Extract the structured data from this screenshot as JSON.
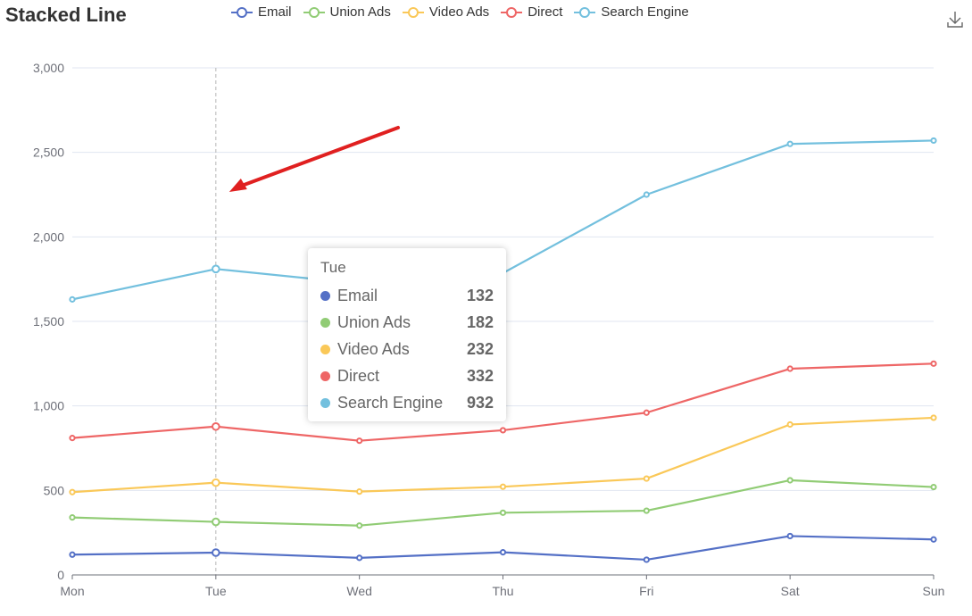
{
  "title": "Stacked Line",
  "toolbox": {
    "icon": "download-icon"
  },
  "tooltip": {
    "title": "Tue",
    "rows": [
      {
        "name": "Email",
        "value": "132",
        "color": "#5470c6"
      },
      {
        "name": "Union Ads",
        "value": "182",
        "color": "#91cc75"
      },
      {
        "name": "Video Ads",
        "value": "232",
        "color": "#fac858"
      },
      {
        "name": "Direct",
        "value": "332",
        "color": "#ee6666"
      },
      {
        "name": "Search Engine",
        "value": "932",
        "color": "#73c0de"
      }
    ]
  },
  "chart_data": {
    "type": "line",
    "title": "Stacked Line",
    "categories": [
      "Mon",
      "Tue",
      "Wed",
      "Thu",
      "Fri",
      "Sat",
      "Sun"
    ],
    "y_ticks": [
      "0",
      "500",
      "1,000",
      "1,500",
      "2,000",
      "2,500",
      "3,000"
    ],
    "ylim": [
      0,
      3000
    ],
    "grid": true,
    "legend_position": "top",
    "highlighted_category": "Tue",
    "series": [
      {
        "name": "Email",
        "color": "#5470c6",
        "values": [
          120,
          132,
          101,
          134,
          90,
          230,
          210
        ]
      },
      {
        "name": "Union Ads",
        "color": "#91cc75",
        "values": [
          340,
          314,
          292,
          368,
          380,
          560,
          520
        ]
      },
      {
        "name": "Video Ads",
        "color": "#fac858",
        "values": [
          490,
          546,
          493,
          522,
          570,
          890,
          930
        ]
      },
      {
        "name": "Direct",
        "color": "#ee6666",
        "values": [
          810,
          878,
          794,
          856,
          960,
          1220,
          1250
        ]
      },
      {
        "name": "Search Engine",
        "color": "#73c0de",
        "values": [
          1630,
          1810,
          1724,
          1786,
          2250,
          2550,
          2570
        ]
      }
    ],
    "annotation": {
      "type": "arrow",
      "color": "#e02020",
      "points_to": "Tue"
    }
  }
}
